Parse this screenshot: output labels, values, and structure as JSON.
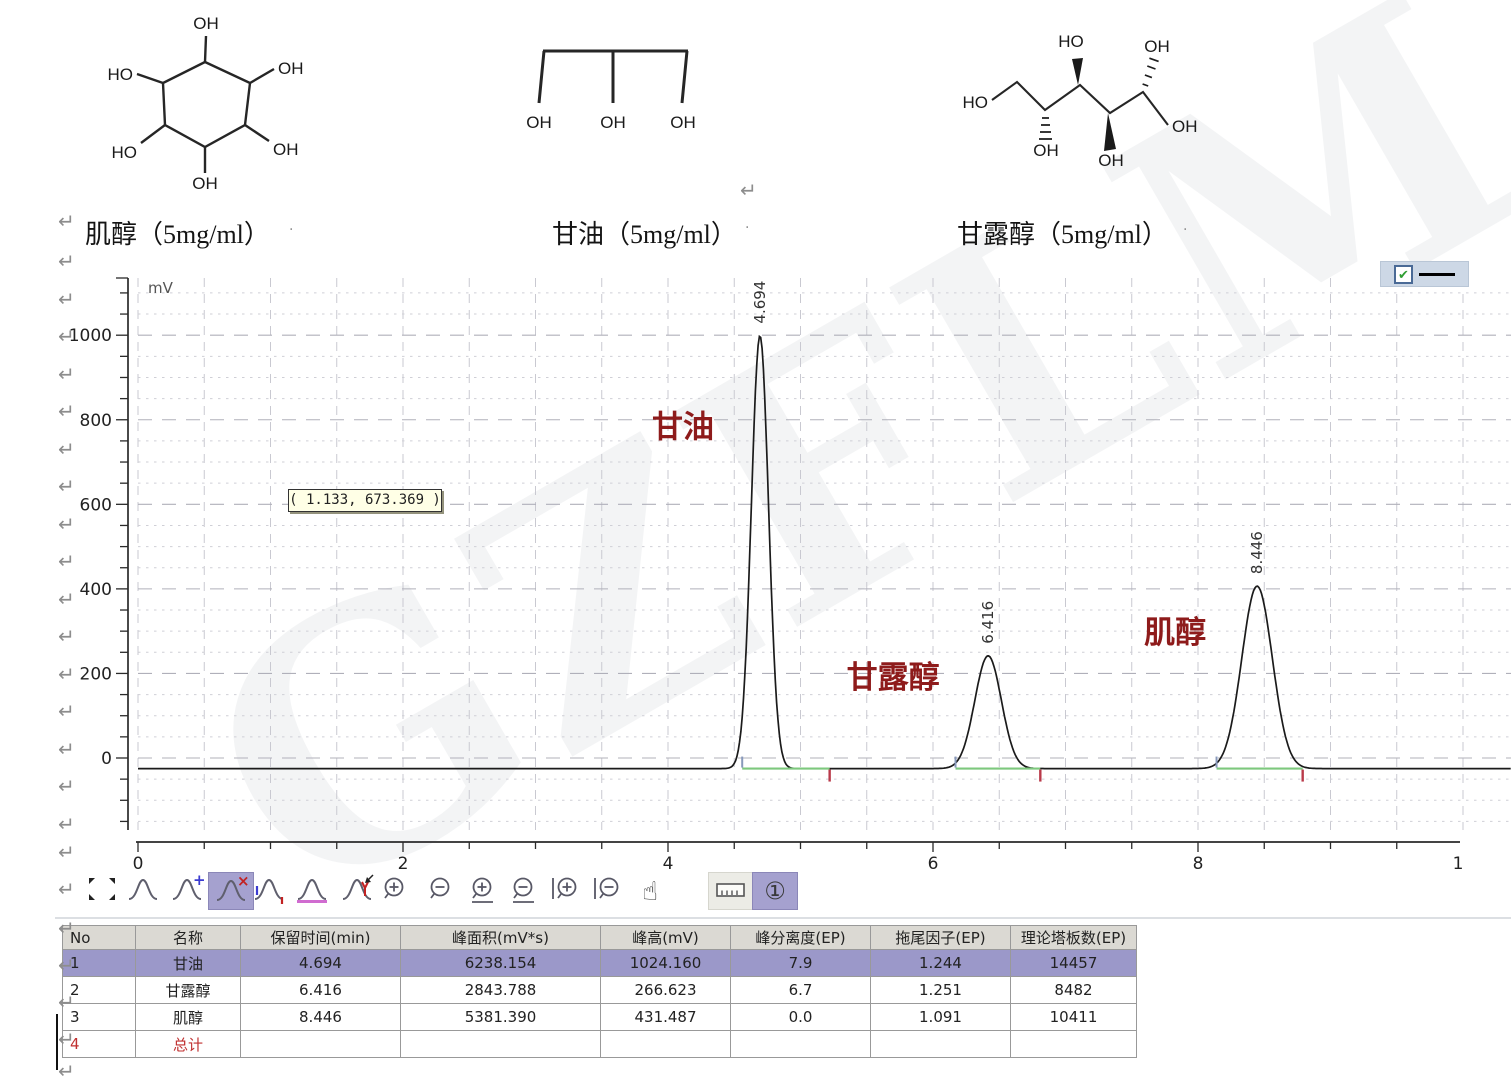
{
  "window": {
    "background": "#ffffff",
    "watermark_text": "GZFLM"
  },
  "structures": [
    {
      "id": "inositol",
      "label": "肌醇（5mg/ml）",
      "atoms": [
        "OH",
        "HO",
        "OH",
        "HO",
        "OH",
        "OH"
      ]
    },
    {
      "id": "glycerol",
      "label": "甘油（5mg/ml）",
      "atoms": [
        "OH",
        "OH",
        "OH"
      ]
    },
    {
      "id": "mannitol",
      "label": "甘露醇（5mg/ml）",
      "atoms": [
        "HO",
        "HO",
        "OH",
        "OH",
        "OH",
        "OH"
      ]
    }
  ],
  "chart_data": {
    "type": "line",
    "title": "",
    "xlabel": "",
    "ylabel": "mV",
    "xlim": [
      0,
      10
    ],
    "ylim": [
      -170,
      1135
    ],
    "x_ticks": [
      0,
      2,
      4,
      6,
      8
    ],
    "x_tick_partial": "1",
    "x_minor_step": 0.5,
    "y_ticks": [
      0,
      200,
      400,
      600,
      800,
      1000
    ],
    "y_minor_step": 50,
    "grid": "dashed",
    "baseline_mV": -25,
    "series": [
      {
        "name": "signal",
        "color": "#1b1b1b"
      }
    ],
    "peaks": [
      {
        "name": "甘油",
        "rt": 4.694,
        "rt_label": "4.694",
        "height_mV": 1024.16,
        "sigma_min": 0.065,
        "integ_start": 4.56,
        "integ_end": 5.22
      },
      {
        "name": "甘露醇",
        "rt": 6.416,
        "rt_label": "6.416",
        "height_mV": 266.623,
        "sigma_min": 0.1,
        "integ_start": 6.17,
        "integ_end": 6.81
      },
      {
        "name": "肌醇",
        "rt": 8.446,
        "rt_label": "8.446",
        "height_mV": 431.487,
        "sigma_min": 0.115,
        "integ_start": 8.14,
        "integ_end": 8.79
      }
    ],
    "peak_label_color": "#8e1b1b",
    "baseline_color": "#7dc87d",
    "peak_start_marker_color": "#8899bb",
    "peak_end_marker_color": "#b93a4a",
    "tooltip": "( 1.133, 673.369 )",
    "legend": {
      "checked": true,
      "line_color": "#000000"
    }
  },
  "toolbar": {
    "items": [
      {
        "name": "fit-scale"
      },
      {
        "name": "peak"
      },
      {
        "name": "add-peak"
      },
      {
        "name": "delete-peak",
        "selected": true
      },
      {
        "name": "peak-start-end"
      },
      {
        "name": "baseline"
      },
      {
        "name": "manual-integration"
      },
      {
        "name": "zoom-in"
      },
      {
        "name": "zoom-out"
      },
      {
        "name": "zoom-in-horizontal"
      },
      {
        "name": "zoom-out-horizontal"
      },
      {
        "name": "zoom-in-vertical"
      },
      {
        "name": "zoom-out-vertical"
      },
      {
        "name": "pan-hand"
      },
      {
        "name": "ruler",
        "boxed": true
      },
      {
        "name": "overlay-number-1",
        "glyph": "①",
        "selected": true
      }
    ]
  },
  "table": {
    "headers": [
      "No",
      "名称",
      "保留时间(min)",
      "峰面积(mV*s)",
      "峰高(mV)",
      "峰分离度(EP)",
      "拖尾因子(EP)",
      "理论塔板数(EP)"
    ],
    "rows": [
      {
        "no": "1",
        "name": "甘油",
        "cells": [
          "4.694",
          "6238.154",
          "1024.160",
          "7.9",
          "1.244",
          "14457"
        ],
        "highlighted": true
      },
      {
        "no": "2",
        "name": "甘露醇",
        "cells": [
          "6.416",
          "2843.788",
          "266.623",
          "6.7",
          "1.251",
          "8482"
        ],
        "highlighted": false
      },
      {
        "no": "3",
        "name": "肌醇",
        "cells": [
          "8.446",
          "5381.390",
          "431.487",
          "0.0",
          "1.091",
          "10411"
        ],
        "highlighted": false
      },
      {
        "no": "4",
        "name": "总计",
        "cells": [
          "",
          "",
          "",
          "",
          "",
          ""
        ],
        "highlighted": false,
        "accent": "red"
      }
    ],
    "highlight_color": "#9b98c9"
  },
  "format_marks": {
    "return_glyph": "↵",
    "small_mark": "·"
  }
}
